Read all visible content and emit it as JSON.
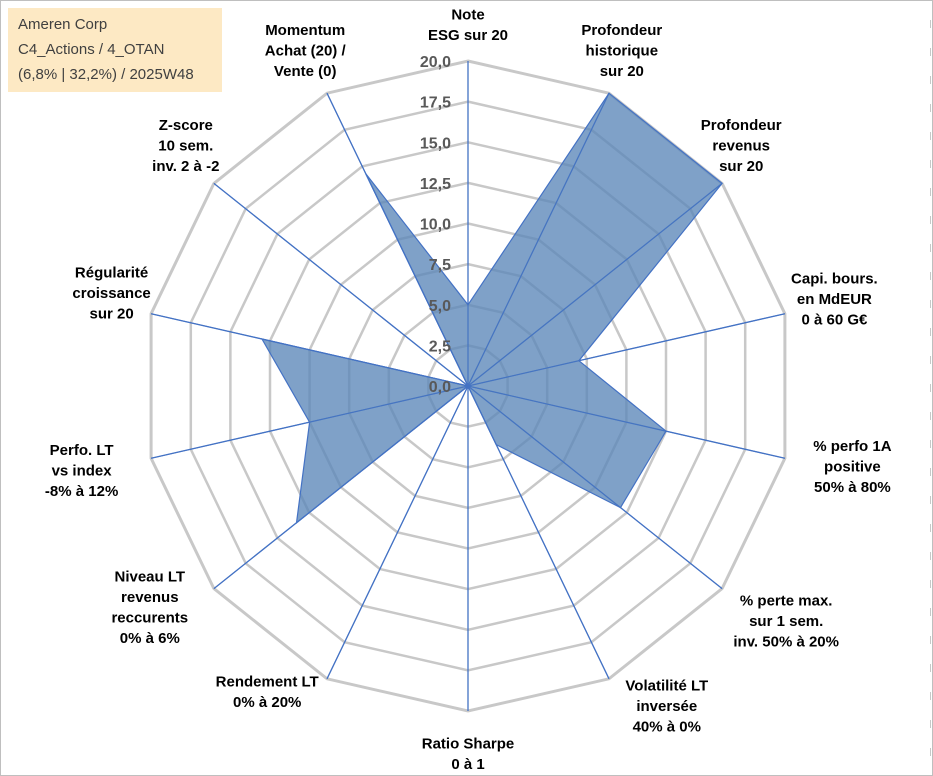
{
  "info": {
    "company": "Ameren Corp",
    "portfolio": "C4_Actions / 4_OTAN",
    "details": "(6,8% | 32,2%) / 2025W48"
  },
  "chart_data": {
    "type": "radar",
    "scale_labels": [
      "0,0",
      "2,5",
      "5,0",
      "7,5",
      "10,0",
      "12,5",
      "15,0",
      "17,5",
      "20,0"
    ],
    "rmin": 0,
    "rmax": 20,
    "categories": [
      [
        "Note",
        "ESG sur 20"
      ],
      [
        "Profondeur",
        "historique",
        "sur 20"
      ],
      [
        "Profondeur",
        "revenus",
        "sur 20"
      ],
      [
        "Capi. bours.",
        "en MdEUR",
        "0 à 60 G€"
      ],
      [
        "% perfo 1A",
        "positive",
        "50% à 80%"
      ],
      [
        "% perte max.",
        "sur 1 sem.",
        "inv. 50% à 20%"
      ],
      [
        "Volatilité LT",
        "inversée",
        "40% à 0%"
      ],
      [
        "Ratio Sharpe",
        "0 à 1"
      ],
      [
        "Rendement LT",
        "0% à 20%"
      ],
      [
        "Niveau LT",
        "revenus",
        "reccurents",
        "0% à 6%"
      ],
      [
        "Perfo. LT",
        "vs index",
        "-8% à 12%"
      ],
      [
        "Régularité",
        "croissance",
        "sur 20"
      ],
      [
        "Z-score",
        "10 sem.",
        "inv. 2 à -2"
      ],
      [
        "Momentum",
        "Achat (20) /",
        "Vente (0)"
      ]
    ],
    "values": [
      5.0,
      20.0,
      20.0,
      7.0,
      12.5,
      12.0,
      4.0,
      0.0,
      0.0,
      13.5,
      10.0,
      13.0,
      0.0,
      14.5
    ],
    "grid": true,
    "colors": {
      "fill": "#5b86b8",
      "fill_opacity": 0.78,
      "stroke": "#4472c4",
      "grid": "#c8c8c8",
      "spoke": "#4472c4",
      "label": "#000000",
      "scale_label": "#595959"
    }
  }
}
